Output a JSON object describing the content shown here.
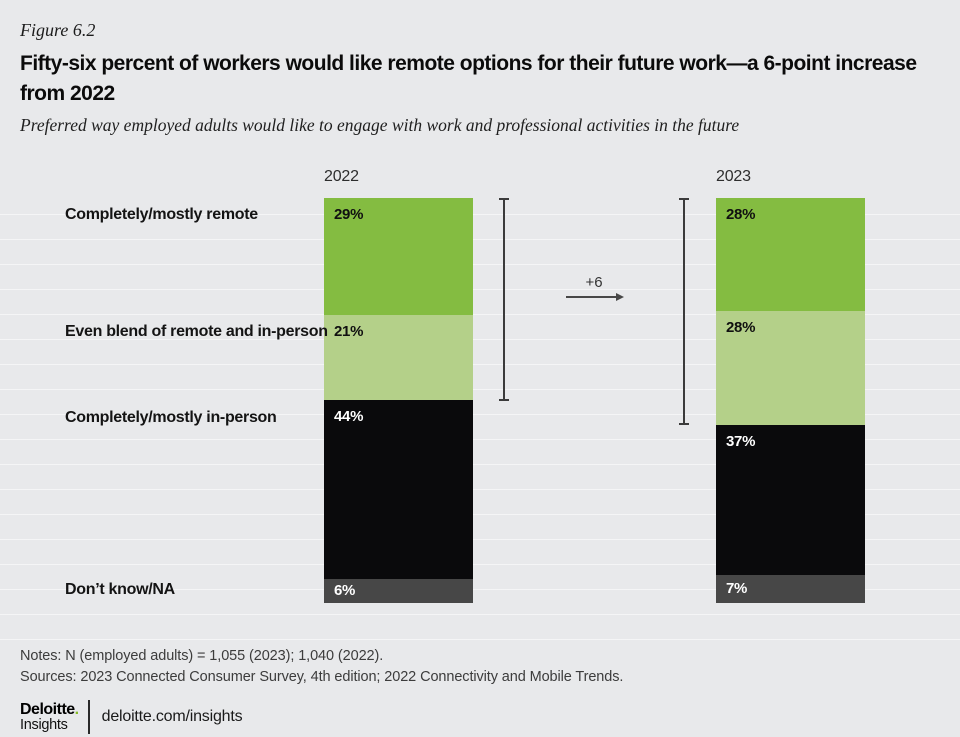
{
  "figure_label": "Figure 6.2",
  "title": "Fifty-six percent of workers would like remote options for their future work—a 6-point increase from 2022",
  "subtitle": "Preferred way employed adults would like to engage with work and professional activities in the future",
  "chart_data": {
    "type": "bar",
    "stacked": true,
    "orientation": "vertical",
    "unit": "%",
    "categories": [
      "Completely/mostly remote",
      "Even blend of remote and in-person",
      "Completely/mostly in-person",
      "Don’t know/NA"
    ],
    "series": [
      {
        "name": "2022",
        "values": [
          29,
          21,
          44,
          6
        ]
      },
      {
        "name": "2023",
        "values": [
          28,
          28,
          37,
          7
        ]
      }
    ],
    "annotation": {
      "label": "+6",
      "spans_categories": [
        "Completely/mostly remote",
        "Even blend of remote and in-person"
      ],
      "from_total": 50,
      "to_total": 56
    },
    "colors": {
      "segments": [
        "#84bc41",
        "#b4d089",
        "#0a0a0c",
        "#474747"
      ],
      "segment_label_colors": [
        "#101010",
        "#101010",
        "#ffffff",
        "#ffffff"
      ],
      "annotation_line": "#3b3b3b",
      "background": "#e8e9eb",
      "accent_green": "#86bc25"
    },
    "legend": "none",
    "grid": "faint horizontal stripes"
  },
  "notes": "Notes: N (employed adults) = 1,055 (2023); 1,040 (2022).",
  "sources": "Sources: 2023 Connected Consumer Survey, 4th edition; 2022 Connectivity and Mobile Trends.",
  "footer": {
    "brand_name": "Deloitte",
    "brand_dot": ".",
    "brand_sub": "Insights",
    "url": "deloitte.com/insights"
  }
}
